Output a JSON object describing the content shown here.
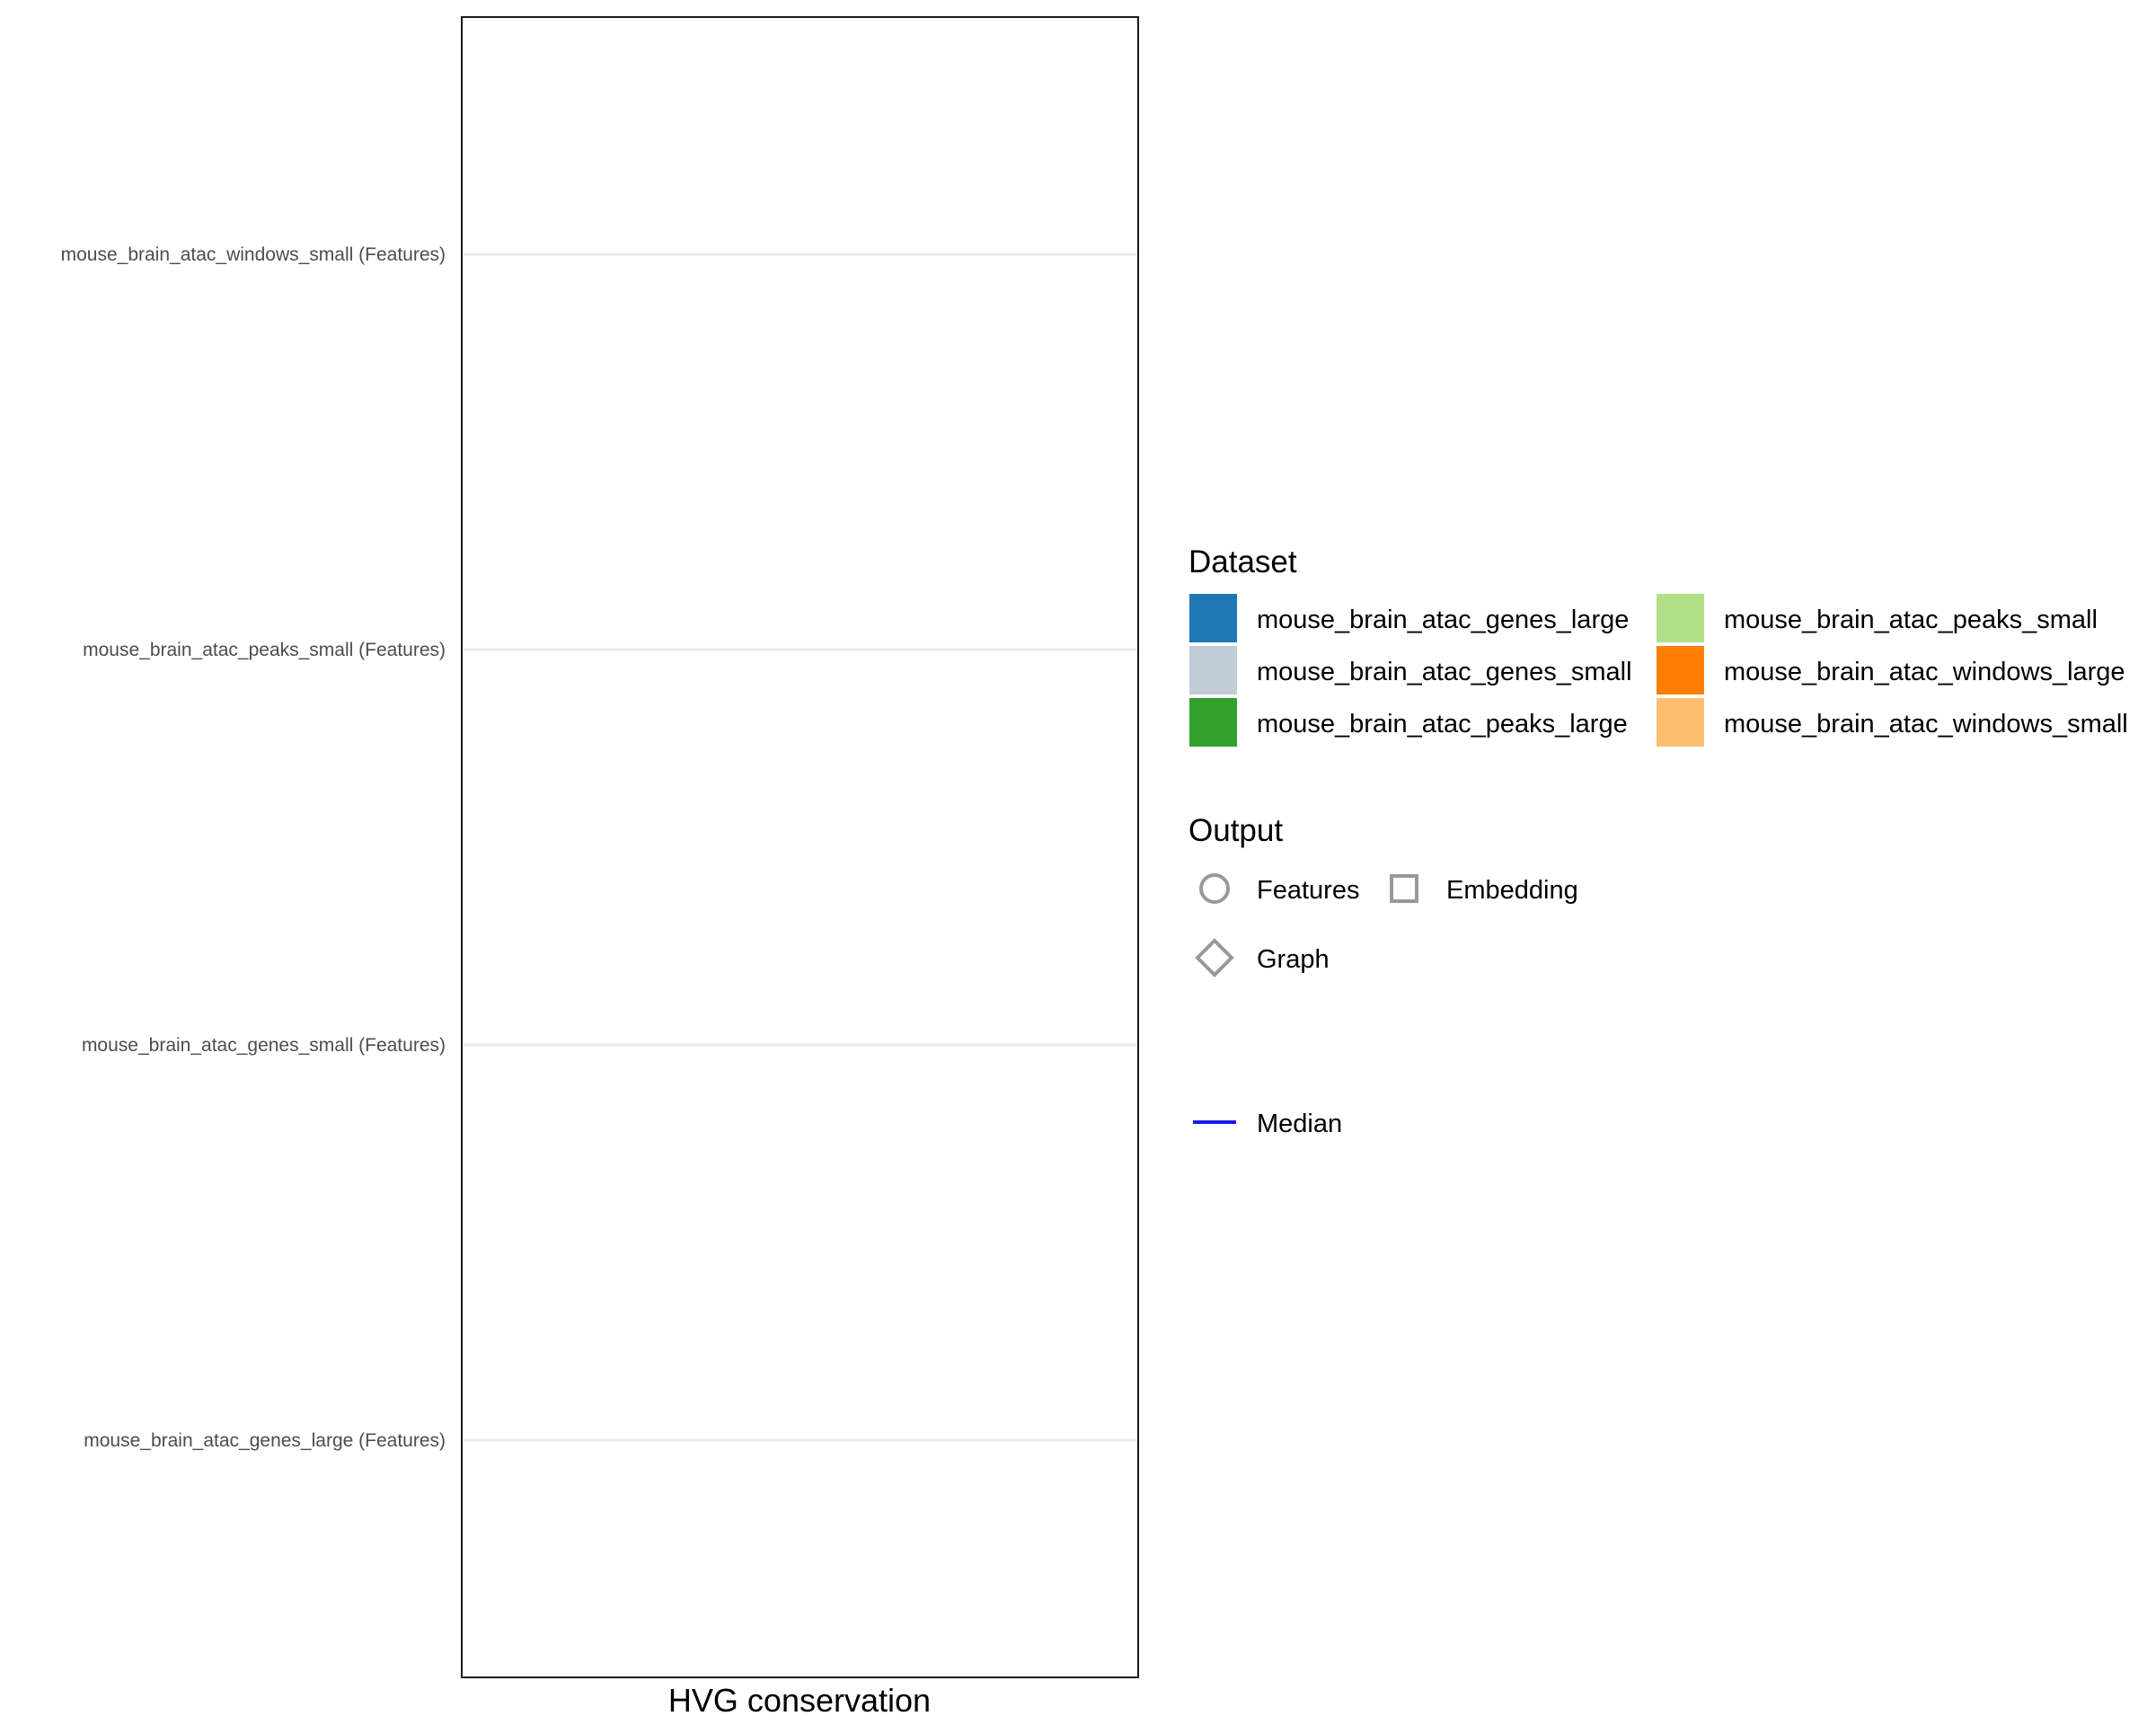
{
  "chart_data": {
    "type": "scatter",
    "title": "",
    "xlabel": "HVG conservation",
    "ylabel": "",
    "categories": [
      "mouse_brain_atac_windows_small (Features)",
      "mouse_brain_atac_peaks_small (Features)",
      "mouse_brain_atac_genes_small (Features)",
      "mouse_brain_atac_genes_large (Features)"
    ],
    "series": [],
    "grid": "horizontal",
    "legend_position": "right",
    "legend": {
      "dataset": {
        "title": "Dataset",
        "items": [
          {
            "label": "mouse_brain_atac_genes_large",
            "color": "#1F78B4"
          },
          {
            "label": "mouse_brain_atac_genes_small",
            "color": "#C1CDD6"
          },
          {
            "label": "mouse_brain_atac_peaks_large",
            "color": "#33A02C"
          },
          {
            "label": "mouse_brain_atac_peaks_small",
            "color": "#B2DF8A"
          },
          {
            "label": "mouse_brain_atac_windows_large",
            "color": "#FF7F00"
          },
          {
            "label": "mouse_brain_atac_windows_small",
            "color": "#FDBF6F"
          }
        ]
      },
      "output": {
        "title": "Output",
        "items": [
          {
            "label": "Features",
            "shape": "circle"
          },
          {
            "label": "Embedding",
            "shape": "square"
          },
          {
            "label": "Graph",
            "shape": "diamond"
          }
        ]
      },
      "median": {
        "label": "Median",
        "color": "#1A1AE6"
      }
    }
  }
}
